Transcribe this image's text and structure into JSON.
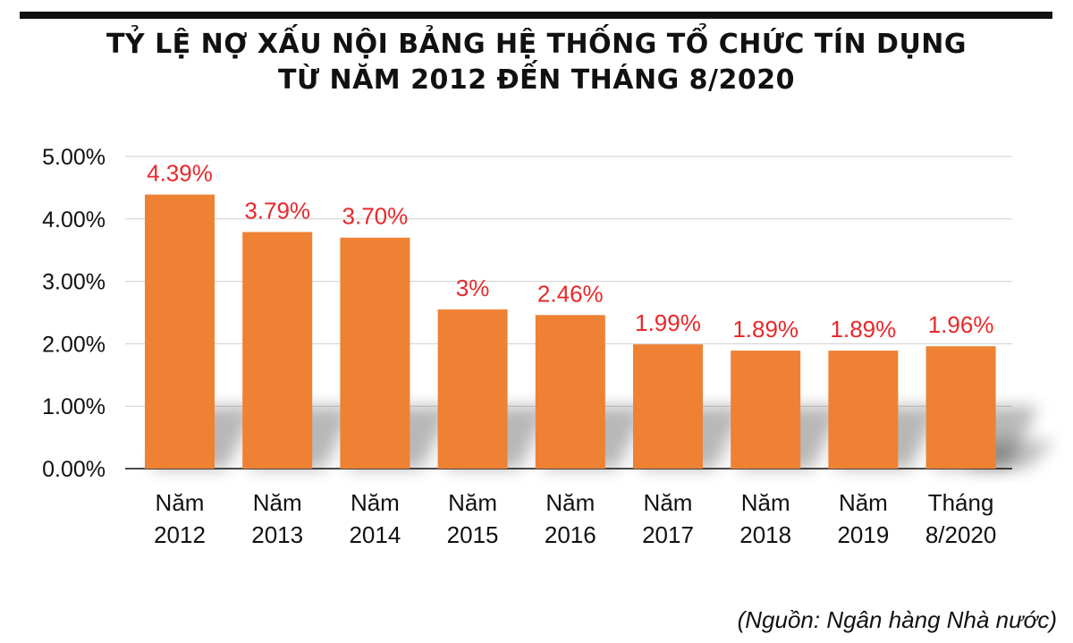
{
  "title": {
    "line1": "TỶ LỆ NỢ XẤU NỘI BẢNG HỆ THỐNG TỔ CHỨC TÍN DỤNG",
    "line2": "TỪ NĂM 2012 ĐẾN THÁNG 8/2020"
  },
  "source": "(Nguồn: Ngân hàng Nhà nước)",
  "colors": {
    "bar": "#ee8133",
    "label": "#e8282b",
    "grid": "#cfcfcf",
    "axis": "#111111"
  },
  "chart_data": {
    "type": "bar",
    "title": "TỶ LỆ NỢ XẤU NỘI BẢNG HỆ THỐNG TỔ CHỨC TÍN DỤNG TỪ NĂM 2012 ĐẾN THÁNG 8/2020",
    "categories": [
      [
        "Năm",
        "2012"
      ],
      [
        "Năm",
        "2013"
      ],
      [
        "Năm",
        "2014"
      ],
      [
        "Năm",
        "2015"
      ],
      [
        "Năm",
        "2016"
      ],
      [
        "Năm",
        "2017"
      ],
      [
        "Năm",
        "2018"
      ],
      [
        "Năm",
        "2019"
      ],
      [
        "Tháng",
        "8/2020"
      ]
    ],
    "values": [
      4.39,
      3.79,
      3.7,
      2.55,
      2.46,
      1.99,
      1.89,
      1.89,
      1.96
    ],
    "data_labels": [
      "4.39%",
      "3.79%",
      "3.70%",
      "3%",
      "2.46%",
      "1.99%",
      "1.89%",
      "1.89%",
      "1.96%"
    ],
    "y_ticks": [
      "0.00%",
      "1.00%",
      "2.00%",
      "3.00%",
      "4.00%",
      "5.00%"
    ],
    "ylim": [
      0,
      5
    ],
    "grid": true,
    "xlabel": "",
    "ylabel": ""
  }
}
